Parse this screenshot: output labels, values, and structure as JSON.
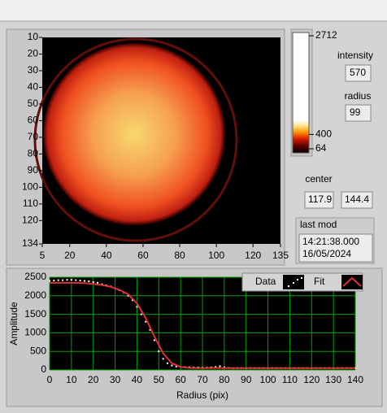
{
  "image_plot": {
    "xlim": [
      5,
      135
    ],
    "ylim": [
      10,
      134
    ],
    "xticks": [
      5,
      20,
      40,
      60,
      80,
      100,
      120,
      135
    ],
    "yticks": [
      10,
      20,
      30,
      40,
      50,
      60,
      70,
      80,
      90,
      100,
      110,
      120,
      134
    ]
  },
  "colorbar": {
    "lim": [
      64,
      2712
    ],
    "ticks": [
      2712,
      400,
      64
    ]
  },
  "indicators": {
    "intensity": {
      "label": "intensity",
      "value": 570
    },
    "radius": {
      "label": "radius",
      "value": 99
    },
    "center": {
      "label": "center",
      "values": [
        117.9,
        144.4
      ]
    },
    "last_mod": {
      "label": "last mod",
      "time": "14:21:38.000",
      "date": "16/05/2024"
    }
  },
  "chart_data": {
    "type": "line",
    "xlabel": "Radius (pix)",
    "ylabel": "Amplitude",
    "xlim": [
      0,
      140
    ],
    "ylim": [
      0,
      2500
    ],
    "xticks": [
      0,
      10,
      20,
      30,
      40,
      50,
      60,
      70,
      80,
      90,
      100,
      110,
      120,
      130,
      140
    ],
    "yticks": [
      0,
      500,
      1000,
      1500,
      2000,
      2500
    ],
    "grid": true,
    "grid_color": "#00a000",
    "legend": "top-right",
    "series": [
      {
        "name": "Data",
        "color": "#ffffff",
        "mode": "markers",
        "x": [
          0,
          2,
          4,
          6,
          8,
          10,
          12,
          14,
          16,
          18,
          20,
          22,
          24,
          26,
          28,
          30,
          32,
          34,
          36,
          38,
          40,
          42,
          44,
          46,
          48,
          50,
          52,
          54,
          56,
          58,
          60,
          62,
          64,
          66,
          68,
          70,
          72,
          74,
          76,
          78,
          80,
          82,
          84,
          86,
          88,
          90,
          92,
          94,
          96,
          98,
          100,
          102,
          104,
          106,
          108,
          110,
          112,
          114,
          116,
          118,
          120,
          122,
          124,
          126,
          128,
          130,
          132,
          134,
          136,
          138,
          140
        ],
        "values": [
          2400,
          2410,
          2420,
          2420,
          2430,
          2430,
          2420,
          2410,
          2400,
          2390,
          2370,
          2350,
          2310,
          2280,
          2250,
          2200,
          2150,
          2090,
          2000,
          1880,
          1700,
          1500,
          1300,
          1080,
          800,
          500,
          300,
          180,
          120,
          90,
          80,
          75,
          70,
          65,
          65,
          60,
          60,
          65,
          80,
          100,
          70,
          55,
          50,
          50,
          50,
          50,
          50,
          50,
          50,
          50,
          50,
          50,
          50,
          50,
          50,
          50,
          50,
          50,
          50,
          50,
          50,
          50,
          50,
          50,
          50,
          50,
          50,
          50,
          50,
          50,
          50
        ]
      },
      {
        "name": "Fit",
        "color": "#e03030",
        "mode": "line",
        "x": [
          0,
          4,
          8,
          12,
          16,
          20,
          24,
          28,
          32,
          36,
          40,
          44,
          48,
          52,
          56,
          60,
          64,
          68,
          72,
          76,
          80,
          84,
          88,
          92,
          96,
          100,
          104,
          108,
          112,
          116,
          120,
          124,
          128,
          132,
          136,
          140
        ],
        "values": [
          2350,
          2350,
          2350,
          2350,
          2340,
          2320,
          2290,
          2240,
          2160,
          2040,
          1800,
          1400,
          900,
          450,
          180,
          80,
          55,
          50,
          50,
          55,
          50,
          50,
          50,
          50,
          50,
          50,
          50,
          50,
          50,
          50,
          50,
          50,
          50,
          50,
          50,
          50
        ]
      }
    ]
  }
}
